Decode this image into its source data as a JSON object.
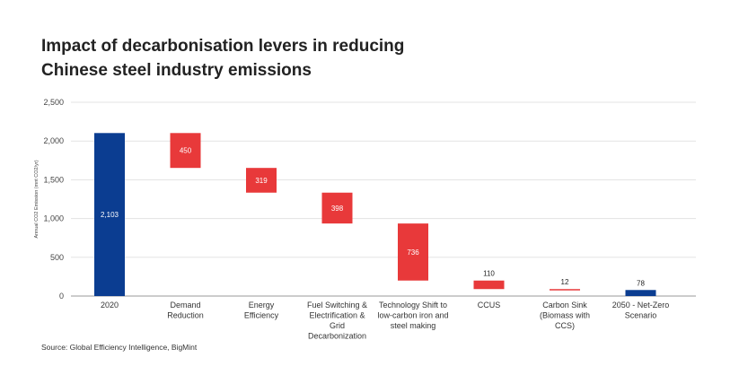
{
  "title_line1": "Impact of decarbonisation levers in reducing",
  "title_line2": "Chinese steel industry emissions",
  "source": "Source: Global Efficiency Intelligence, BigMint",
  "colors": {
    "total": "#0b3d91",
    "reduction": "#e8393a",
    "grid": "#e3e3e3",
    "axis": "#999999"
  },
  "chart_data": {
    "type": "bar",
    "subtype": "waterfall",
    "ylabel": "Annual CO2 Emission (mnt CO2/yr)",
    "ylim": [
      0,
      2500
    ],
    "yticks": [
      "0",
      "500",
      "1,000",
      "1,500",
      "2,000",
      "2,500"
    ],
    "grid": true,
    "bars": [
      {
        "category": [
          "2020"
        ],
        "value": 2103,
        "label": "2,103",
        "kind": "total"
      },
      {
        "category": [
          "Demand",
          "Reduction"
        ],
        "value": 450,
        "label": "450",
        "kind": "reduction"
      },
      {
        "category": [
          "Energy",
          "Efficiency"
        ],
        "value": 319,
        "label": "319",
        "kind": "reduction"
      },
      {
        "category": [
          "Fuel Switching &",
          "Electrification &",
          "Grid",
          "Decarbonization"
        ],
        "value": 398,
        "label": "398",
        "kind": "reduction"
      },
      {
        "category": [
          "Technology Shift to",
          "low-carbon iron and",
          "steel making"
        ],
        "value": 736,
        "label": "736",
        "kind": "reduction"
      },
      {
        "category": [
          "CCUS"
        ],
        "value": 110,
        "label": "110",
        "kind": "reduction"
      },
      {
        "category": [
          "Carbon Sink",
          "(Biomass with",
          "CCS)"
        ],
        "value": 12,
        "label": "12",
        "kind": "reduction"
      },
      {
        "category": [
          "2050 - Net-Zero",
          "Scenario"
        ],
        "value": 78,
        "label": "78",
        "kind": "total"
      }
    ]
  }
}
